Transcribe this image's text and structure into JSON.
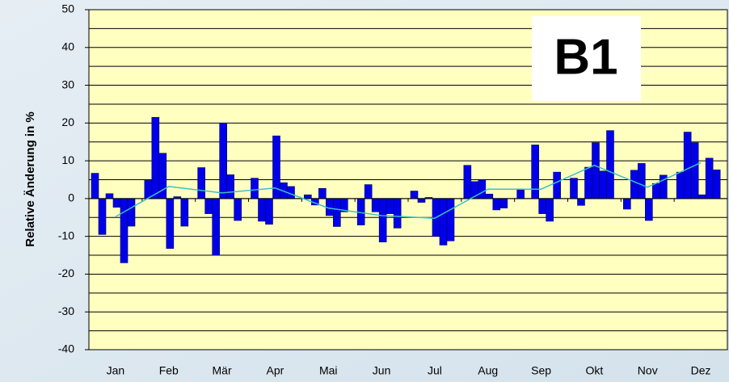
{
  "chart_data": {
    "type": "bar",
    "ylabel": "Relative Änderung in %",
    "annotation": "B1",
    "categories": [
      "Jan",
      "Feb",
      "Mär",
      "Apr",
      "Mai",
      "Jun",
      "Jul",
      "Aug",
      "Sep",
      "Okt",
      "Nov",
      "Dez"
    ],
    "values": [
      [
        6.7,
        -9.5,
        1.3,
        -2.3,
        -17,
        -7.3
      ],
      [
        4.8,
        21.5,
        12,
        -13.2,
        0.5,
        -7.3
      ],
      [
        8.2,
        -4,
        -15,
        20,
        6.3,
        -5.8
      ],
      [
        5.4,
        -6,
        -6.8,
        16.6,
        4.2,
        3.2
      ],
      [
        1,
        -1.7,
        2.7,
        -4.5,
        -7.4,
        -3.5
      ],
      [
        -7,
        3.7,
        -3.5,
        -11.5,
        -4,
        -7.8
      ],
      [
        2,
        -1,
        0.3,
        -10,
        -12.3,
        -11.2
      ],
      [
        8.8,
        4.5,
        4.9,
        1.2,
        -3,
        -2.5
      ],
      [
        2.3,
        0,
        14.2,
        -4,
        -6,
        7
      ],
      [
        5.4,
        -1.8,
        8.3,
        14.8,
        7.3,
        18
      ],
      [
        -2.8,
        7.5,
        9.3,
        -5.8,
        4,
        6.2
      ],
      [
        7,
        17.6,
        14.8,
        1,
        10.7,
        7.6
      ]
    ],
    "color": "#0000e8",
    "line_values": [
      -4.8,
      3.2,
      1.5,
      2.8,
      -2.5,
      -4.5,
      -5.2,
      2.5,
      2.5,
      8.8,
      3,
      9.5
    ],
    "line_color": "#3cc0c8",
    "ylim": [
      -40,
      50
    ],
    "yticks": [
      -40,
      -30,
      -20,
      -10,
      0,
      10,
      20,
      30,
      40,
      50
    ],
    "minor_yticks": [
      -35,
      -25,
      -15,
      -5,
      5,
      15,
      25,
      35,
      45
    ],
    "grid": true
  }
}
